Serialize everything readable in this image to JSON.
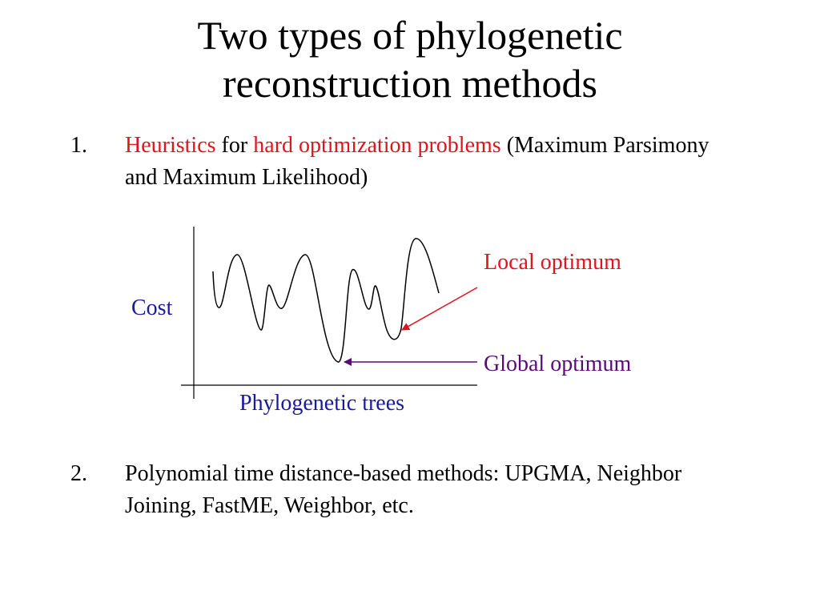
{
  "slide": {
    "title_line1": "Two types of phylogenetic",
    "title_line2": "reconstruction methods"
  },
  "items": [
    {
      "number": "1.",
      "text_heuristics": "Heuristics",
      "text_for": " for ",
      "text_hard": "hard optimization problems",
      "text_rest": " (Maximum Parsimony and Maximum Likelihood)"
    },
    {
      "number": "2.",
      "text": "Polynomial time distance-based methods: UPGMA, Neighbor Joining, FastME, Weighbor, etc."
    }
  ],
  "diagram": {
    "y_label": "Cost",
    "x_label": "Phylogenetic trees",
    "local_label": "Local optimum",
    "global_label": "Global optimum",
    "colors": {
      "axis_label": "#1a1a9c",
      "local": "#e0141e",
      "global": "#5a0a78",
      "curve": "#000000"
    }
  }
}
